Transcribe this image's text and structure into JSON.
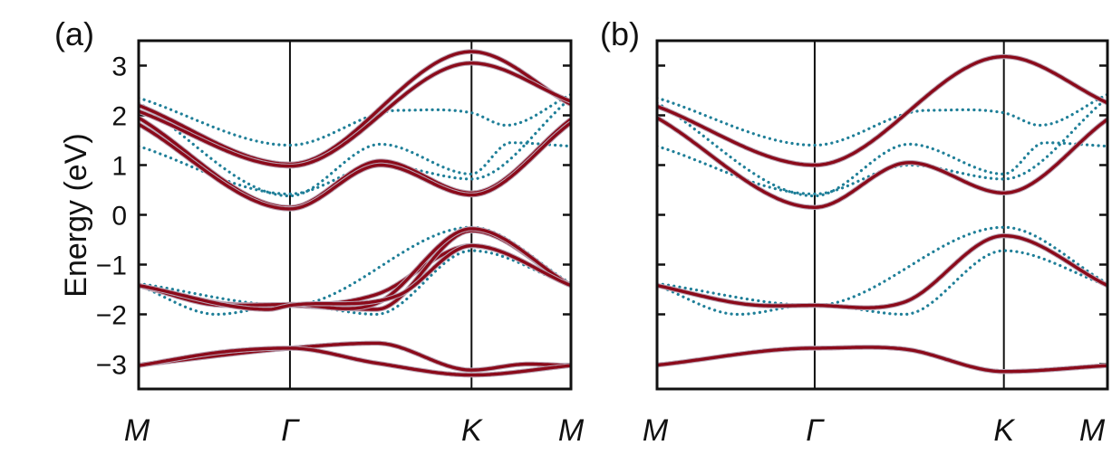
{
  "colors": {
    "dft_band": "#8b0a1a",
    "dft_band_shadow": "#b9a3b3",
    "model_band": "#1f7f98",
    "axis": "#111111"
  },
  "chart_data": [
    {
      "type": "line",
      "panel": "(a)",
      "ylabel": "Energy (eV)",
      "ylim": [
        -3.5,
        3.5
      ],
      "yticks": [
        -3,
        -2,
        -1,
        0,
        1,
        2,
        3
      ],
      "ytick_labels": [
        "−3",
        "−2",
        "−1",
        "0",
        "1",
        "2",
        "3"
      ],
      "x_range": [
        0,
        1
      ],
      "kpoints": [
        {
          "label": "M",
          "x": 0.0
        },
        {
          "label": "Γ",
          "x": 0.35
        },
        {
          "label": "K",
          "x": 0.77
        },
        {
          "label": "M",
          "x": 1.0
        }
      ],
      "series_style": {
        "solid": "dft_band",
        "dotted": "model_band"
      },
      "solid_bands": [
        [
          [
            0,
            -3.02
          ],
          [
            0.35,
            -2.68
          ],
          [
            0.55,
            -2.58
          ],
          [
            0.77,
            -3.12
          ],
          [
            0.9,
            -3.0
          ],
          [
            1,
            -3.03
          ]
        ],
        [
          [
            0,
            -3.03
          ],
          [
            0.2,
            -2.75
          ],
          [
            0.35,
            -2.68
          ],
          [
            0.55,
            -2.98
          ],
          [
            0.77,
            -3.22
          ],
          [
            1,
            -3.03
          ]
        ],
        [
          [
            0,
            -1.42
          ],
          [
            0.25,
            -1.82
          ],
          [
            0.35,
            -1.82
          ],
          [
            0.55,
            -1.6
          ],
          [
            0.77,
            -0.62
          ],
          [
            1,
            -1.42
          ]
        ],
        [
          [
            0,
            -1.42
          ],
          [
            0.15,
            -1.75
          ],
          [
            0.35,
            -1.82
          ],
          [
            0.55,
            -1.9
          ],
          [
            0.77,
            -0.32
          ],
          [
            1,
            -1.42
          ]
        ],
        [
          [
            0,
            -1.42
          ],
          [
            0.2,
            -1.82
          ],
          [
            0.35,
            -1.8
          ],
          [
            0.55,
            -1.78
          ],
          [
            0.77,
            -0.28
          ],
          [
            1,
            -1.42
          ]
        ],
        [
          [
            0,
            -1.42
          ],
          [
            0.3,
            -1.9
          ],
          [
            0.35,
            -1.82
          ],
          [
            0.6,
            -1.62
          ],
          [
            0.77,
            -0.62
          ],
          [
            1,
            -1.42
          ]
        ],
        [
          [
            0,
            1.95
          ],
          [
            0.35,
            0.15
          ],
          [
            0.56,
            1.08
          ],
          [
            0.77,
            0.44
          ],
          [
            1,
            1.92
          ]
        ],
        [
          [
            0,
            1.82
          ],
          [
            0.35,
            0.12
          ],
          [
            0.56,
            1.0
          ],
          [
            0.77,
            0.4
          ],
          [
            1,
            1.85
          ]
        ],
        [
          [
            0,
            2.2
          ],
          [
            0.35,
            1.02
          ],
          [
            0.77,
            3.28
          ],
          [
            1,
            2.22
          ]
        ],
        [
          [
            0,
            2.08
          ],
          [
            0.35,
            0.98
          ],
          [
            0.77,
            3.05
          ],
          [
            1,
            2.28
          ]
        ]
      ],
      "dotted_bands": [
        [
          [
            0,
            2.35
          ],
          [
            0.35,
            1.4
          ],
          [
            0.6,
            2.1
          ],
          [
            0.77,
            2.05
          ],
          [
            0.85,
            1.8
          ],
          [
            1,
            2.42
          ]
        ],
        [
          [
            0,
            2.25
          ],
          [
            0.35,
            0.38
          ],
          [
            0.56,
            1.42
          ],
          [
            0.77,
            0.82
          ],
          [
            0.86,
            1.45
          ],
          [
            1,
            1.38
          ]
        ],
        [
          [
            0,
            1.38
          ],
          [
            0.35,
            0.42
          ],
          [
            0.56,
            1.0
          ],
          [
            0.77,
            0.72
          ],
          [
            1,
            2.35
          ]
        ],
        [
          [
            0,
            -1.38
          ],
          [
            0.35,
            -1.82
          ],
          [
            0.77,
            -0.25
          ],
          [
            1,
            -1.38
          ]
        ],
        [
          [
            0,
            -1.42
          ],
          [
            0.18,
            -2.0
          ],
          [
            0.35,
            -1.8
          ],
          [
            0.55,
            -2.0
          ],
          [
            0.77,
            -0.72
          ],
          [
            1,
            -1.42
          ]
        ]
      ]
    },
    {
      "type": "line",
      "panel": "(b)",
      "ylabel": "",
      "ylim": [
        -3.5,
        3.5
      ],
      "yticks": [
        -3,
        -2,
        -1,
        0,
        1,
        2,
        3
      ],
      "ytick_labels": [],
      "x_range": [
        0,
        1
      ],
      "kpoints": [
        {
          "label": "M",
          "x": 0.0
        },
        {
          "label": "Γ",
          "x": 0.35
        },
        {
          "label": "K",
          "x": 0.77
        },
        {
          "label": "M",
          "x": 1.0
        }
      ],
      "series_style": {
        "solid": "dft_band",
        "dotted": "model_band"
      },
      "solid_bands": [
        [
          [
            0,
            -3.02
          ],
          [
            0.35,
            -2.68
          ],
          [
            0.55,
            -2.7
          ],
          [
            0.77,
            -3.15
          ],
          [
            1,
            -3.03
          ]
        ],
        [
          [
            0,
            -1.42
          ],
          [
            0.2,
            -1.8
          ],
          [
            0.35,
            -1.82
          ],
          [
            0.55,
            -1.75
          ],
          [
            0.77,
            -0.42
          ],
          [
            1,
            -1.42
          ]
        ],
        [
          [
            0,
            1.95
          ],
          [
            0.35,
            0.15
          ],
          [
            0.56,
            1.05
          ],
          [
            0.77,
            0.44
          ],
          [
            1,
            1.92
          ]
        ],
        [
          [
            0,
            2.18
          ],
          [
            0.35,
            1.0
          ],
          [
            0.77,
            3.18
          ],
          [
            1,
            2.25
          ]
        ]
      ],
      "dotted_bands": [
        [
          [
            0,
            2.35
          ],
          [
            0.35,
            1.4
          ],
          [
            0.6,
            2.1
          ],
          [
            0.77,
            2.05
          ],
          [
            0.85,
            1.8
          ],
          [
            1,
            2.42
          ]
        ],
        [
          [
            0,
            2.25
          ],
          [
            0.35,
            0.38
          ],
          [
            0.56,
            1.42
          ],
          [
            0.77,
            0.82
          ],
          [
            0.86,
            1.45
          ],
          [
            1,
            1.38
          ]
        ],
        [
          [
            0,
            1.38
          ],
          [
            0.35,
            0.42
          ],
          [
            0.56,
            1.0
          ],
          [
            0.77,
            0.72
          ],
          [
            1,
            2.35
          ]
        ],
        [
          [
            0,
            -1.38
          ],
          [
            0.35,
            -1.82
          ],
          [
            0.77,
            -0.25
          ],
          [
            1,
            -1.38
          ]
        ],
        [
          [
            0,
            -1.42
          ],
          [
            0.18,
            -2.0
          ],
          [
            0.35,
            -1.8
          ],
          [
            0.55,
            -2.0
          ],
          [
            0.77,
            -0.72
          ],
          [
            1,
            -1.42
          ]
        ]
      ]
    }
  ]
}
